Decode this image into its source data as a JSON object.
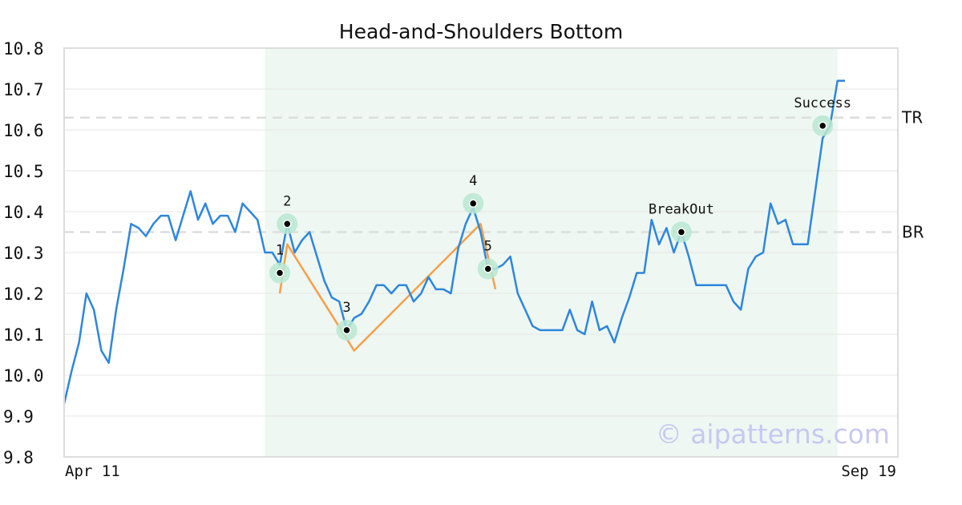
{
  "chart_data": {
    "type": "line",
    "title": "Head-and-Shoulders Bottom",
    "ylim": [
      9.8,
      10.8
    ],
    "y_ticks": [
      "10.8",
      "10.7",
      "10.6",
      "10.5",
      "10.4",
      "10.3",
      "10.2",
      "10.1",
      "10.0",
      "9.9",
      "9.8"
    ],
    "x_tick_labels": [
      "Apr 11",
      "Sep 19"
    ],
    "series": [
      {
        "color": "#2e86de",
        "values": [
          9.93,
          10.01,
          10.08,
          10.2,
          10.16,
          10.06,
          10.03,
          10.16,
          10.26,
          10.37,
          10.36,
          10.34,
          10.37,
          10.39,
          10.39,
          10.33,
          10.39,
          10.45,
          10.38,
          10.42,
          10.37,
          10.39,
          10.39,
          10.35,
          10.42,
          10.4,
          10.38,
          10.3,
          10.3,
          10.27,
          10.37,
          10.3,
          10.33,
          10.35,
          10.29,
          10.23,
          10.19,
          10.18,
          10.11,
          10.14,
          10.15,
          10.18,
          10.22,
          10.22,
          10.2,
          10.22,
          10.22,
          10.18,
          10.2,
          10.24,
          10.21,
          10.21,
          10.2,
          10.31,
          10.37,
          10.41,
          10.35,
          10.26,
          10.26,
          10.27,
          10.29,
          10.2,
          10.16,
          10.12,
          10.11,
          10.11,
          10.11,
          10.11,
          10.16,
          10.11,
          10.1,
          10.18,
          10.11,
          10.12,
          10.08,
          10.14,
          10.19,
          10.25,
          10.25,
          10.38,
          10.32,
          10.36,
          10.3,
          10.35,
          10.29,
          10.22,
          10.22,
          10.22,
          10.22,
          10.22,
          10.18,
          10.16,
          10.26,
          10.29,
          10.3,
          10.42,
          10.37,
          10.38,
          10.32,
          10.32,
          10.32,
          10.45,
          10.58,
          10.61,
          10.72,
          10.72
        ]
      },
      {
        "color": "#f5a04a",
        "x_index": [
          29.0,
          30.0,
          39.0,
          56.0,
          58.0
        ],
        "values": [
          10.2,
          10.32,
          10.06,
          10.37,
          10.21
        ]
      }
    ],
    "pattern_region": {
      "x_start_index": 27,
      "x_end_index": 104,
      "color": "#eef7f2"
    },
    "levels": [
      {
        "label": "TR",
        "value": 10.63
      },
      {
        "label": "BR",
        "value": 10.35
      }
    ],
    "pivots": [
      {
        "label": "1",
        "x_index": 29,
        "value": 10.25
      },
      {
        "label": "2",
        "x_index": 30,
        "value": 10.37
      },
      {
        "label": "3",
        "x_index": 38,
        "value": 10.11
      },
      {
        "label": "4",
        "x_index": 55,
        "value": 10.42
      },
      {
        "label": "5",
        "x_index": 57,
        "value": 10.26
      },
      {
        "label": "BreakOut",
        "x_index": 83,
        "value": 10.35
      },
      {
        "label": "Success",
        "x_index": 102,
        "value": 10.61
      }
    ],
    "watermark": "© aipatterns.com",
    "grid": true,
    "legend": "none"
  }
}
